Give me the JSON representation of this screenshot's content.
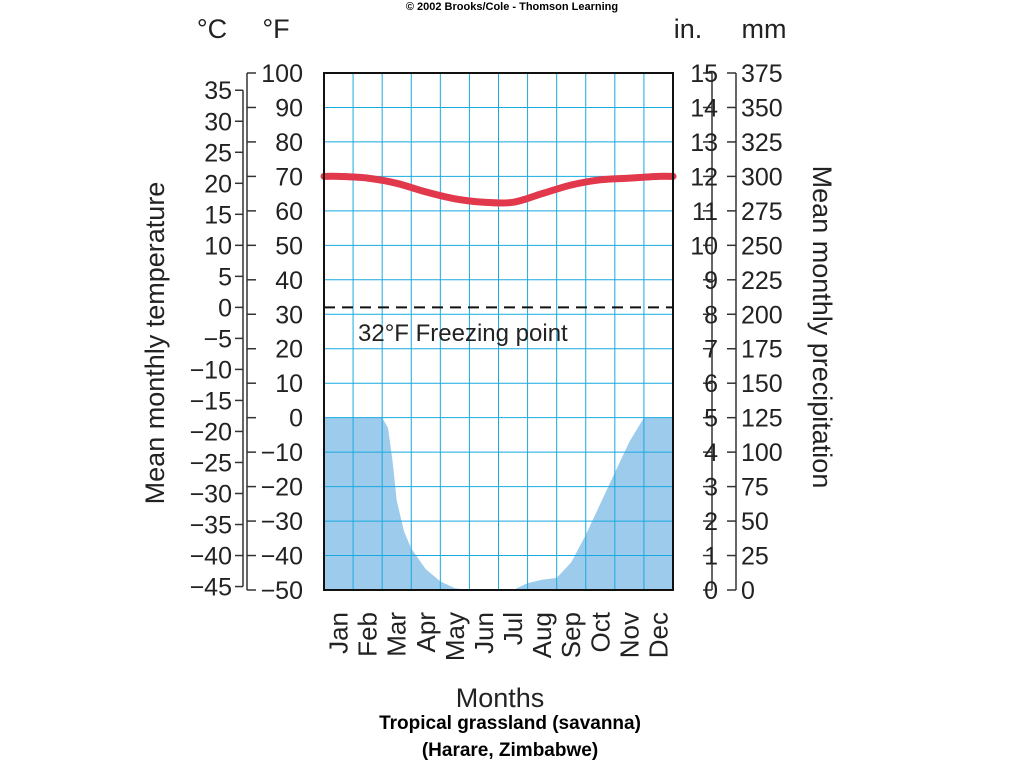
{
  "copyright": "© 2002 Brooks/Cole - Thomson Learning",
  "caption": {
    "line1": "Tropical grassland (savanna)",
    "line2": "(Harare, Zimbabwe)"
  },
  "chart_data": {
    "type": "climate-graph",
    "months": [
      "Jan",
      "Feb",
      "Mar",
      "Apr",
      "May",
      "Jun",
      "Jul",
      "Aug",
      "Sep",
      "Oct",
      "Nov",
      "Dec"
    ],
    "xlabel": "Months",
    "left_axis": {
      "label": "Mean monthly temperature",
      "celsius_unit": "°C",
      "fahrenheit_unit": "°F",
      "celsius_ticks": [
        "35",
        "30",
        "25",
        "20",
        "15",
        "10",
        "5",
        "0",
        "−5",
        "−10",
        "−15",
        "−20",
        "−25",
        "−30",
        "−35",
        "−40",
        "−45"
      ],
      "fahrenheit_ticks": [
        "100",
        "90",
        "80",
        "70",
        "60",
        "50",
        "40",
        "30",
        "20",
        "10",
        "0",
        "−10",
        "−20",
        "−30",
        "−40",
        "−50"
      ],
      "fahrenheit_range": [
        -50,
        100
      ]
    },
    "right_axis": {
      "label": "Mean monthly precipitation",
      "inch_unit": "in.",
      "mm_unit": "mm",
      "inch_ticks": [
        "15",
        "14",
        "13",
        "12",
        "11",
        "10",
        "9",
        "8",
        "7",
        "6",
        "5",
        "4",
        "3",
        "2",
        "1",
        "0"
      ],
      "mm_ticks": [
        "375",
        "350",
        "325",
        "300",
        "275",
        "250",
        "225",
        "200",
        "175",
        "150",
        "125",
        "100",
        "75",
        "50",
        "25",
        "0"
      ],
      "inch_range": [
        0,
        15
      ]
    },
    "temperature": {
      "unit": "°F",
      "x": [
        0,
        0.5,
        1.5,
        2.5,
        3.5,
        4.5,
        5.5,
        6.5,
        7.5,
        8.5,
        9.5,
        10.5,
        11.5,
        12
      ],
      "values": [
        70,
        70,
        69.5,
        68,
        65.5,
        63.5,
        62.5,
        62.5,
        65,
        67.5,
        69,
        69.5,
        70,
        70
      ],
      "color": "#e2384b"
    },
    "precipitation": {
      "unit": "in.",
      "x": [
        0,
        1,
        1.5,
        2,
        2.2,
        2.35,
        2.5,
        2.75,
        3,
        3.5,
        4,
        4.5,
        5,
        5.5,
        6,
        6.5,
        7,
        7.5,
        8,
        8.5,
        9,
        9.5,
        10,
        10.5,
        11,
        11.5,
        12
      ],
      "values": [
        5.0,
        5.0,
        5.0,
        5.0,
        4.7,
        3.8,
        2.6,
        1.7,
        1.2,
        0.6,
        0.25,
        0.05,
        0.0,
        0.0,
        0.0,
        0.0,
        0.2,
        0.3,
        0.35,
        0.8,
        1.6,
        2.5,
        3.4,
        4.3,
        5.0,
        5.0,
        5.0
      ],
      "color": "#9ccbec"
    },
    "freezing_line": {
      "value_f": 32,
      "label": "32°F Freezing point"
    },
    "grid": true,
    "grid_color": "#19a9e1"
  }
}
